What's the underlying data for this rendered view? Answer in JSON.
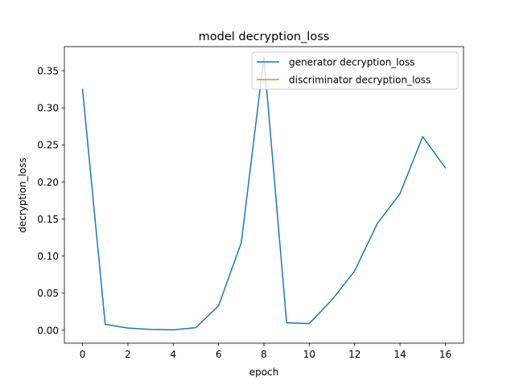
{
  "chart_data": {
    "type": "line",
    "title": "model decryption_loss",
    "xlabel": "epoch",
    "ylabel": "decryption_loss",
    "xlim": [
      -0.8,
      16.8
    ],
    "ylim": [
      -0.0175,
      0.3825
    ],
    "x_ticks": [
      0,
      2,
      4,
      6,
      8,
      10,
      12,
      14,
      16
    ],
    "x_tick_labels": [
      "0",
      "2",
      "4",
      "6",
      "8",
      "10",
      "12",
      "14",
      "16"
    ],
    "y_ticks": [
      0.0,
      0.05,
      0.1,
      0.15,
      0.2,
      0.25,
      0.3,
      0.35
    ],
    "y_tick_labels": [
      "0.00",
      "0.05",
      "0.10",
      "0.15",
      "0.20",
      "0.25",
      "0.30",
      "0.35"
    ],
    "grid": false,
    "legend_position": "upper right",
    "series": [
      {
        "name": "generator decryption_loss",
        "color": "#1f77b4",
        "x": [
          0,
          1,
          2,
          3,
          4,
          5,
          6,
          7,
          8,
          9,
          10,
          11,
          12,
          13,
          14,
          15,
          16
        ],
        "values": [
          0.325,
          0.008,
          0.003,
          0.001,
          0.0005,
          0.0035,
          0.033,
          0.118,
          0.368,
          0.01,
          0.009,
          0.041,
          0.08,
          0.144,
          0.184,
          0.261,
          0.219
        ]
      },
      {
        "name": "discriminator decryption_loss",
        "color": "#ff7f0e",
        "x": [],
        "values": []
      }
    ]
  }
}
